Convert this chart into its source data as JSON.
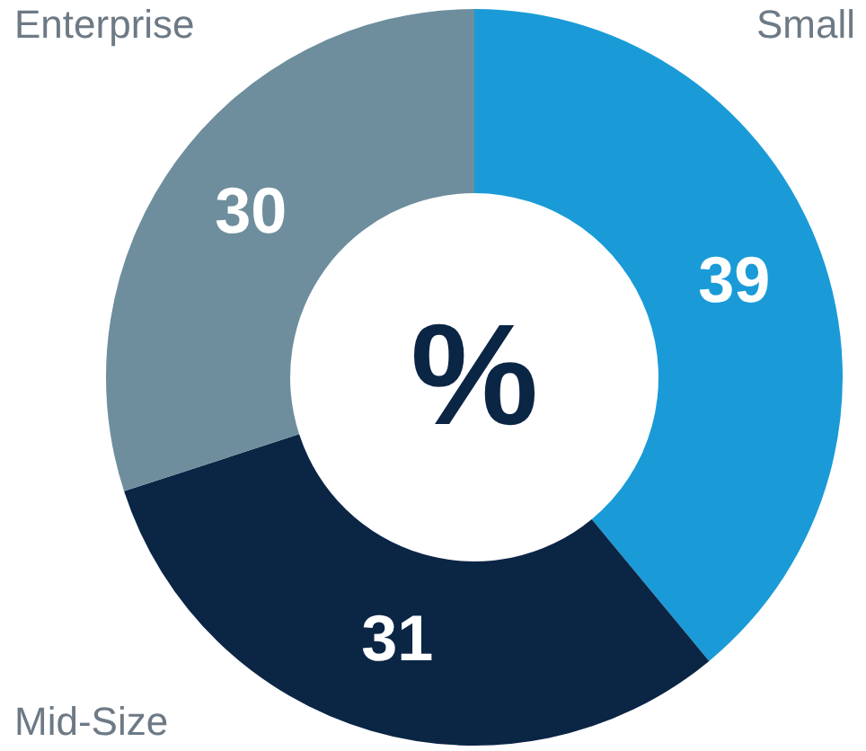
{
  "chart_data": {
    "type": "donut",
    "categories": [
      "Small",
      "Mid-Size",
      "Enterprise"
    ],
    "values": [
      39,
      31,
      30
    ],
    "colors": [
      "#1a9bd7",
      "#0b2545",
      "#6e8e9e"
    ],
    "data_labels": true,
    "annotations": [
      "%"
    ]
  }
}
